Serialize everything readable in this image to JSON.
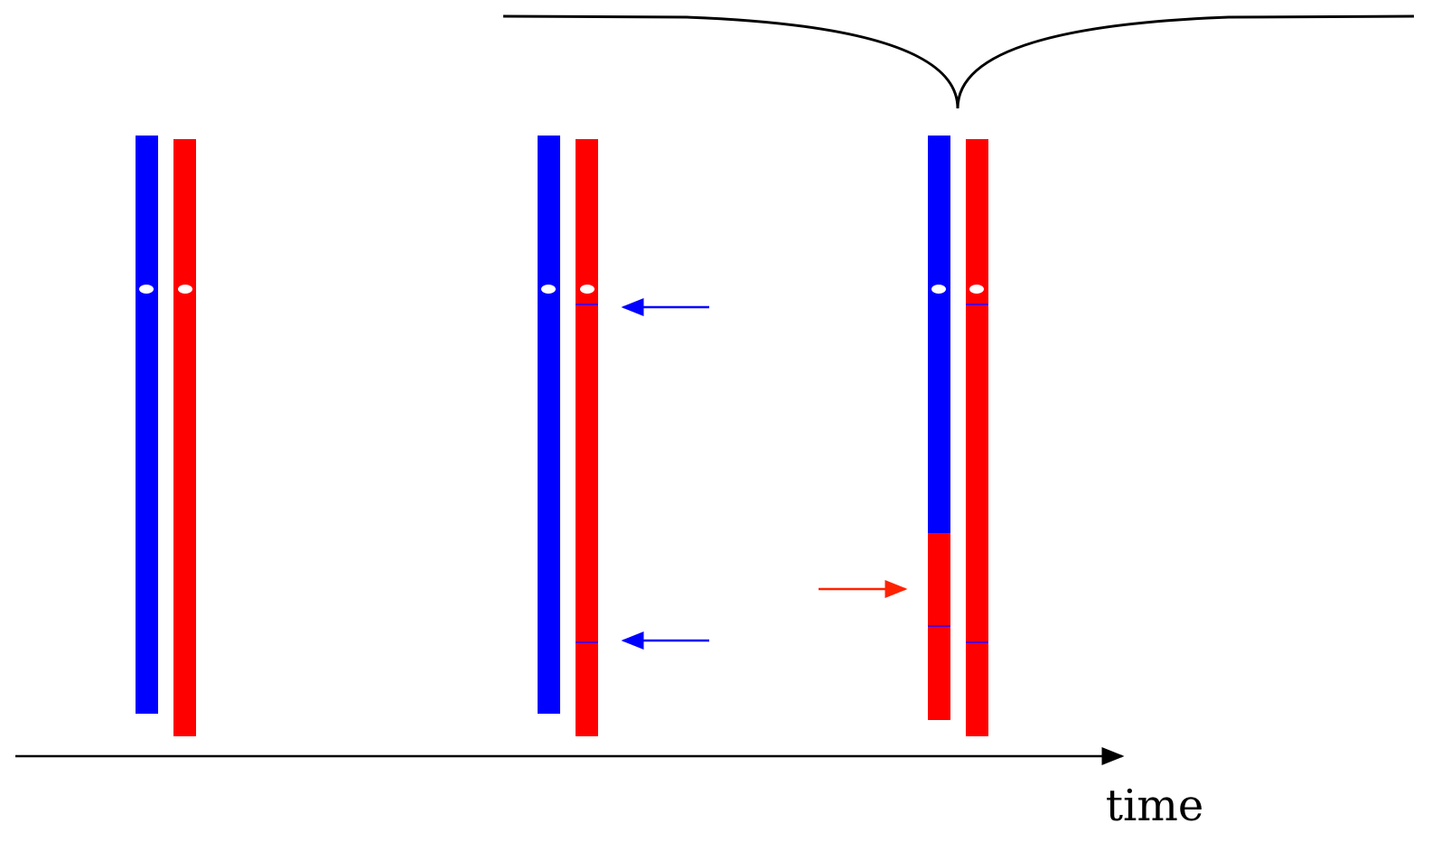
{
  "axis": {
    "label": "time"
  }
}
